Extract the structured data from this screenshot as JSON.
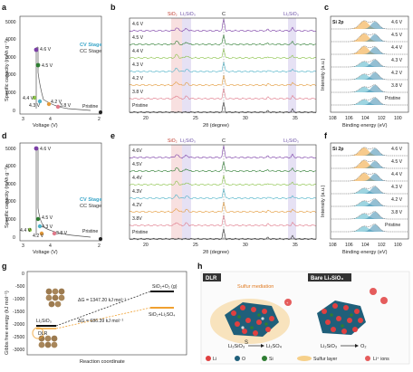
{
  "panels": {
    "a": {
      "label": "a",
      "ylabel": "Specific capacity (mAh g⁻¹)",
      "xlabel": "Voltage (V)",
      "yticks": [
        "5000",
        "4000",
        "3000",
        "2000",
        "1000",
        "0"
      ],
      "xticks": [
        "3",
        "4"
      ],
      "axis_break_tick": "2",
      "legend_cv": "CV Stage",
      "legend_cc": "CC Stage",
      "points": [
        "4.6 V",
        "4.5 V",
        "4.4 V",
        "4.3 V",
        "4.2 V",
        "3.8 V"
      ],
      "pristine_label": "Pristine"
    },
    "b": {
      "label": "b",
      "xlabel": "2θ (degree)",
      "xticks": [
        "20",
        "25",
        "30",
        "35"
      ],
      "top_labels": {
        "sio2": "SiO₂",
        "li2sio3": "Li₂SiO₃",
        "c": "C",
        "li2sio3_r": "Li₂SiO₃"
      },
      "curves": [
        "4.6 V",
        "4.5 V",
        "4.4 V",
        "4.3 V",
        "4.2 V",
        "3.8 V",
        "Pristine"
      ]
    },
    "c": {
      "label": "c",
      "ylabel": "Intensity (a.u.)",
      "title": "Si 2p",
      "xlabel": "Binding energy (eV)",
      "xticks": [
        "108",
        "106",
        "104",
        "102",
        "100"
      ],
      "curves": [
        "4.6 V",
        "4.5 V",
        "4.4 V",
        "4.3 V",
        "4.2 V",
        "3.8 V",
        "Pristine"
      ]
    },
    "d": {
      "label": "d",
      "ylabel": "Specific capacity (mAh g⁻¹)",
      "xlabel": "Voltage (V)",
      "yticks": [
        "5000",
        "4000",
        "3000",
        "2000",
        "1000",
        "0"
      ],
      "xticks": [
        "3",
        "4"
      ],
      "axis_break_tick": "2",
      "legend_cv": "CV Stage",
      "legend_cc": "CC Stage",
      "points": [
        "4.6 V",
        "4.5 V",
        "4.4 V",
        "4.3 V",
        "4.2 V",
        "3.8 V"
      ],
      "pristine_label": "Pristine"
    },
    "e": {
      "label": "e",
      "xlabel": "2θ (degree)",
      "xticks": [
        "20",
        "25",
        "30",
        "35"
      ],
      "top_labels": {
        "sio2": "SiO₂",
        "li2sio3": "Li₂SiO₃",
        "c": "C",
        "li2sio3_r": "Li₂SiO₃"
      },
      "curves": [
        "4.6V",
        "4.5V",
        "4.4V",
        "4.3V",
        "4.2V",
        "3.8V",
        "Pristine"
      ]
    },
    "f": {
      "label": "f",
      "ylabel": "Intensity (a.u.)",
      "title": "Si 2p",
      "xlabel": "Binding energy (eV)",
      "xticks": [
        "108",
        "106",
        "104",
        "102",
        "100"
      ],
      "curves": [
        "4.6 V",
        "4.5 V",
        "4.4 V",
        "4.3 V",
        "4.2 V",
        "3.8 V",
        "Pristine"
      ]
    },
    "g": {
      "label": "g",
      "ylabel": "Gibbs free energy (kJ mol⁻¹)",
      "xlabel": "Reaction coordinate",
      "yticks": [
        "0",
        "-500",
        "-1000",
        "-1500",
        "-2000",
        "-2500",
        "-3000"
      ],
      "start_label": "Li₂SiO₃",
      "dlr_label": "DLR",
      "end_top": "SiO₂+O₂ (g)",
      "end_bottom": "SiO₂+Li₂SO₄",
      "dg_top": "ΔG = 1347.20 kJ mol⁻¹",
      "dg_bottom": "ΔG = 686.39 kJ mol⁻¹"
    },
    "h": {
      "label": "h",
      "left_title": "DLR",
      "right_title": "Bare Li₂SiO₃",
      "sulfur_mediation": "Sulfur mediation",
      "left_formula": "Li₂SiO₃",
      "left_arrow_to": "Li₂SO₄",
      "s_label": "S",
      "right_formula": "Li₂SiO₃",
      "right_arrow_to": "O₂",
      "legend": [
        "Li",
        "O",
        "Si",
        "Sulfur layer",
        "Li⁺ ions"
      ]
    }
  },
  "colors": {
    "v46": "#7b3fa6",
    "v45": "#2e7d32",
    "v44": "#8bc34a",
    "v43": "#4fb3c8",
    "v42": "#e39a3b",
    "v38": "#e07a8a",
    "pristine": "#333333",
    "cv": "#3aa6c9",
    "dlr": "#f0a030"
  }
}
